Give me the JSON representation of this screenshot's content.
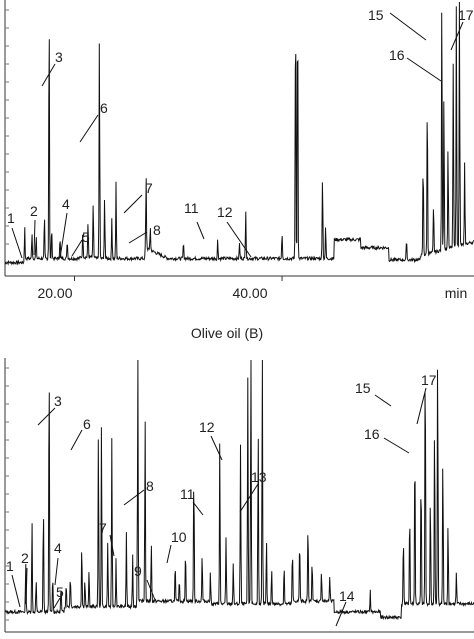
{
  "chart_data": [
    {
      "type": "line",
      "xlabel": "min",
      "x_ticks": [
        "20.00",
        "40.00"
      ],
      "peak_labels": [
        "1",
        "2",
        "3",
        "4",
        "5",
        "6",
        "7",
        "8",
        "11",
        "12",
        "15",
        "16",
        "17"
      ],
      "peaks": [
        {
          "x": 15.2,
          "h": 0.14
        },
        {
          "x": 15.9,
          "h": 0.1
        },
        {
          "x": 16.3,
          "h": 0.08
        },
        {
          "x": 17.1,
          "h": 0.16
        },
        {
          "x": 17.55,
          "h": 0.97
        },
        {
          "x": 17.8,
          "h": 0.12
        },
        {
          "x": 18.6,
          "h": 0.08
        },
        {
          "x": 19.3,
          "h": 0.07
        },
        {
          "x": 20.8,
          "h": 0.09
        },
        {
          "x": 21.3,
          "h": 0.13
        },
        {
          "x": 21.8,
          "h": 0.2
        },
        {
          "x": 22.4,
          "h": 0.84
        },
        {
          "x": 22.9,
          "h": 0.22
        },
        {
          "x": 23.6,
          "h": 0.15
        },
        {
          "x": 24.0,
          "h": 0.28
        },
        {
          "x": 26.9,
          "h": 0.27
        },
        {
          "x": 27.3,
          "h": 0.09
        },
        {
          "x": 30.5,
          "h": 0.06
        },
        {
          "x": 33.8,
          "h": 0.07
        },
        {
          "x": 35.9,
          "h": 0.06
        },
        {
          "x": 36.5,
          "h": 0.18
        },
        {
          "x": 40.0,
          "h": 0.1
        },
        {
          "x": 41.3,
          "h": 1.0
        },
        {
          "x": 41.5,
          "h": 1.0
        },
        {
          "x": 43.9,
          "h": 0.32
        },
        {
          "x": 44.2,
          "h": 0.12
        },
        {
          "x": 52.0,
          "h": 0.08
        },
        {
          "x": 53.6,
          "h": 0.36
        },
        {
          "x": 54.0,
          "h": 0.6
        },
        {
          "x": 54.6,
          "h": 0.18
        },
        {
          "x": 55.4,
          "h": 0.97
        },
        {
          "x": 55.6,
          "h": 0.6
        },
        {
          "x": 56.0,
          "h": 0.38
        },
        {
          "x": 56.5,
          "h": 0.7
        },
        {
          "x": 56.8,
          "h": 0.92
        },
        {
          "x": 57.1,
          "h": 0.99
        },
        {
          "x": 57.6,
          "h": 0.3
        }
      ]
    },
    {
      "type": "line",
      "title": "Olive oil (B)",
      "peak_labels": [
        "1",
        "2",
        "3",
        "4",
        "5",
        "6",
        "7",
        "8",
        "9",
        "10",
        "11",
        "12",
        "13",
        "14",
        "15",
        "16",
        "17"
      ],
      "peaks": [
        {
          "x": 15.3,
          "h": 0.18
        },
        {
          "x": 15.9,
          "h": 0.35
        },
        {
          "x": 16.3,
          "h": 0.12
        },
        {
          "x": 17.0,
          "h": 0.4
        },
        {
          "x": 17.55,
          "h": 0.97
        },
        {
          "x": 17.9,
          "h": 0.14
        },
        {
          "x": 18.7,
          "h": 0.1
        },
        {
          "x": 19.2,
          "h": 0.09
        },
        {
          "x": 19.6,
          "h": 0.12
        },
        {
          "x": 20.7,
          "h": 0.24
        },
        {
          "x": 21.0,
          "h": 0.1
        },
        {
          "x": 21.4,
          "h": 0.14
        },
        {
          "x": 22.3,
          "h": 0.66
        },
        {
          "x": 22.6,
          "h": 0.7
        },
        {
          "x": 23.2,
          "h": 0.24
        },
        {
          "x": 23.6,
          "h": 0.63
        },
        {
          "x": 24.0,
          "h": 0.18
        },
        {
          "x": 25.0,
          "h": 0.28
        },
        {
          "x": 25.6,
          "h": 0.2
        },
        {
          "x": 26.1,
          "h": 0.96
        },
        {
          "x": 26.8,
          "h": 0.7
        },
        {
          "x": 27.4,
          "h": 0.22
        },
        {
          "x": 29.7,
          "h": 0.14
        },
        {
          "x": 30.1,
          "h": 0.08
        },
        {
          "x": 30.7,
          "h": 0.2
        },
        {
          "x": 31.5,
          "h": 0.5
        },
        {
          "x": 32.3,
          "h": 0.18
        },
        {
          "x": 33.1,
          "h": 0.12
        },
        {
          "x": 34.0,
          "h": 0.62
        },
        {
          "x": 34.6,
          "h": 0.25
        },
        {
          "x": 35.3,
          "h": 0.15
        },
        {
          "x": 36.0,
          "h": 0.59
        },
        {
          "x": 36.7,
          "h": 0.85
        },
        {
          "x": 37.0,
          "h": 0.98
        },
        {
          "x": 37.7,
          "h": 0.64
        },
        {
          "x": 38.1,
          "h": 0.98
        },
        {
          "x": 38.5,
          "h": 0.24
        },
        {
          "x": 39.0,
          "h": 0.14
        },
        {
          "x": 40.2,
          "h": 0.15
        },
        {
          "x": 41.0,
          "h": 0.2
        },
        {
          "x": 41.7,
          "h": 0.24
        },
        {
          "x": 42.5,
          "h": 0.3
        },
        {
          "x": 42.9,
          "h": 0.16
        },
        {
          "x": 43.8,
          "h": 0.12
        },
        {
          "x": 44.6,
          "h": 0.09
        },
        {
          "x": 48.5,
          "h": 0.08
        },
        {
          "x": 51.7,
          "h": 0.26
        },
        {
          "x": 52.3,
          "h": 0.36
        },
        {
          "x": 52.8,
          "h": 0.62
        },
        {
          "x": 53.4,
          "h": 0.5
        },
        {
          "x": 53.8,
          "h": 0.98
        },
        {
          "x": 54.3,
          "h": 0.42
        },
        {
          "x": 54.7,
          "h": 0.7
        },
        {
          "x": 55.0,
          "h": 0.98
        },
        {
          "x": 55.5,
          "h": 0.55
        },
        {
          "x": 56.0,
          "h": 0.3
        },
        {
          "x": 56.8,
          "h": 0.12
        }
      ]
    }
  ]
}
